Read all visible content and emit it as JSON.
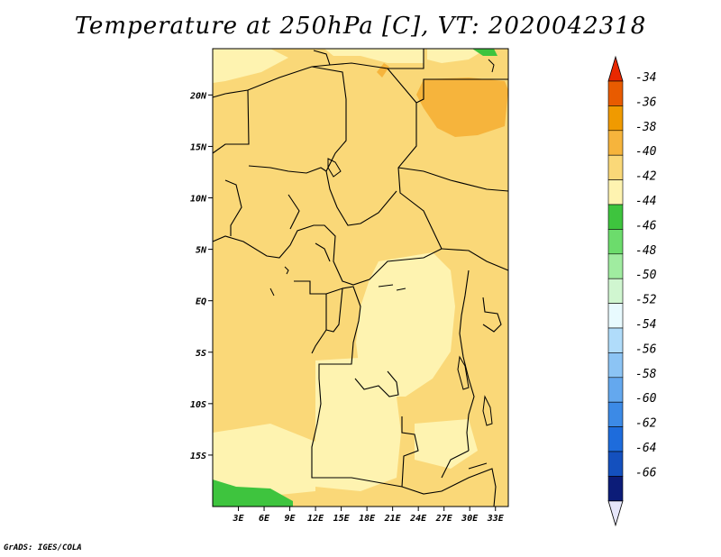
{
  "title": "Temperature at 250hPa [C], VT: 2020042318",
  "credit": "GrADS: IGES/COLA",
  "map": {
    "lon_range": [
      0,
      34.5
    ],
    "lat_range": [
      -20,
      24.5
    ],
    "lat_ticks": [
      {
        "value": 20,
        "label": "20N"
      },
      {
        "value": 15,
        "label": "15N"
      },
      {
        "value": 10,
        "label": "10N"
      },
      {
        "value": 5,
        "label": "5N"
      },
      {
        "value": 0,
        "label": "EQ"
      },
      {
        "value": -5,
        "label": "5S"
      },
      {
        "value": -10,
        "label": "10S"
      },
      {
        "value": -15,
        "label": "15S"
      }
    ],
    "lon_ticks": [
      {
        "value": 3,
        "label": "3E"
      },
      {
        "value": 6,
        "label": "6E"
      },
      {
        "value": 9,
        "label": "9E"
      },
      {
        "value": 12,
        "label": "12E"
      },
      {
        "value": 15,
        "label": "15E"
      },
      {
        "value": 18,
        "label": "18E"
      },
      {
        "value": 21,
        "label": "21E"
      },
      {
        "value": 24,
        "label": "24E"
      },
      {
        "value": 27,
        "label": "27E"
      },
      {
        "value": 30,
        "label": "30E"
      },
      {
        "value": 33,
        "label": "33E"
      }
    ]
  },
  "colorbar": {
    "levels": [
      {
        "label": "-34",
        "color": "#e85b00"
      },
      {
        "label": "-36",
        "color": "#f09a00"
      },
      {
        "label": "-38",
        "color": "#f6b43c"
      },
      {
        "label": "-40",
        "color": "#fad878"
      },
      {
        "label": "-42",
        "color": "#fef3b0"
      },
      {
        "label": "-44",
        "color": "#3ec43e"
      },
      {
        "label": "-46",
        "color": "#6cdc6c"
      },
      {
        "label": "-48",
        "color": "#a0eca0"
      },
      {
        "label": "-50",
        "color": "#d0f6d0"
      },
      {
        "label": "-52",
        "color": "#e8fafe"
      },
      {
        "label": "-54",
        "color": "#b0dcfa"
      },
      {
        "label": "-56",
        "color": "#8cc4f4"
      },
      {
        "label": "-58",
        "color": "#64a8ee"
      },
      {
        "label": "-60",
        "color": "#3c8ae6"
      },
      {
        "label": "-62",
        "color": "#1e6cdc"
      },
      {
        "label": "-64",
        "color": "#1450be"
      },
      {
        "label": "-66",
        "color": "#0c1c78"
      }
    ],
    "top_color": "#e82800",
    "bottom_color": "#e6e6fa"
  }
}
